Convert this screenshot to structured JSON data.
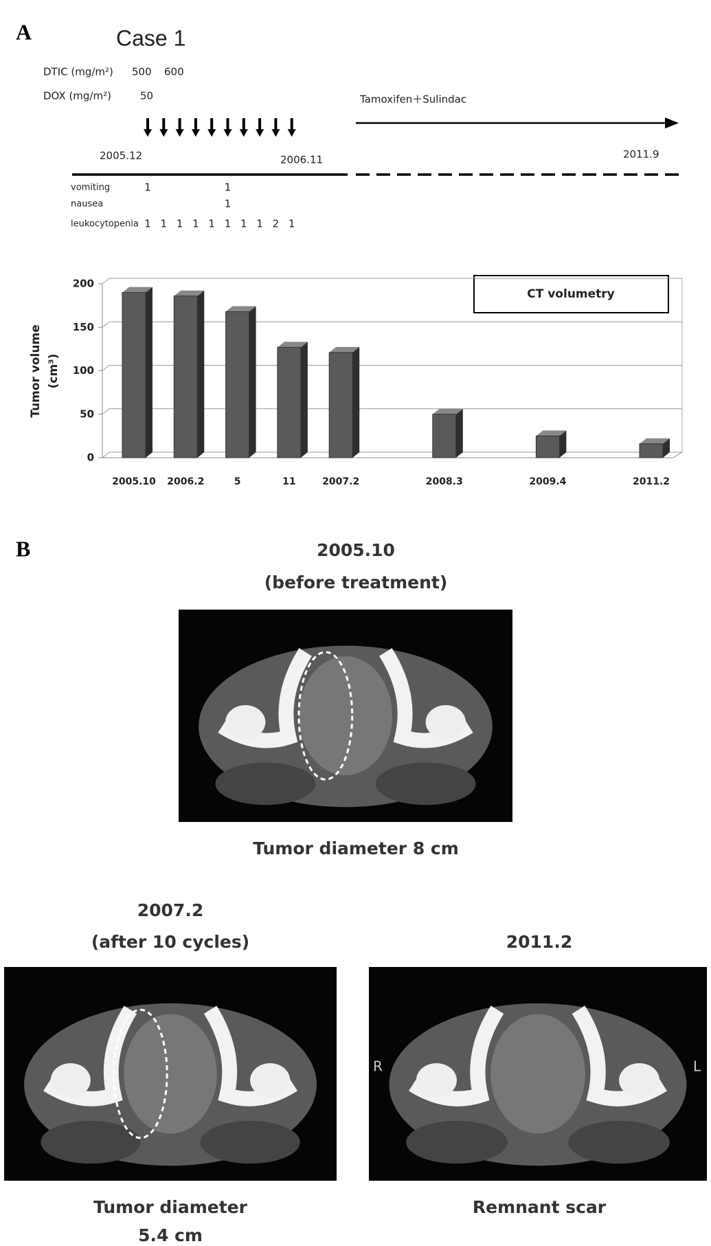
{
  "panel_a": {
    "label": "A",
    "case": "Case 1",
    "dtic_label": "DTIC (mg/m²)",
    "dtic_doses": [
      "500",
      "600"
    ],
    "dox_label": "DOX (mg/m²)",
    "dox_dose": "50",
    "maintenance": "Tamoxifen＋Sulindac",
    "start": "2005.12",
    "chemo_end": "2006.11",
    "end": "2011.9",
    "toxicity": [
      {
        "name": "vomiting",
        "grades": [
          1,
          null,
          null,
          null,
          null,
          1,
          null,
          null,
          null,
          null
        ]
      },
      {
        "name": "nausea",
        "grades": [
          null,
          null,
          null,
          null,
          null,
          1,
          null,
          null,
          null,
          null
        ]
      },
      {
        "name": "leukocytopenia",
        "grades": [
          1,
          1,
          1,
          1,
          1,
          1,
          1,
          1,
          2,
          1
        ]
      }
    ]
  },
  "chart_data": {
    "type": "bar",
    "annotation": "CT volumetry",
    "ylabel": "Tumor volume",
    "ylabel_unit": "(cm³)",
    "categories": [
      "2005.10",
      "2006.2",
      "5",
      "11",
      "2007.2",
      "2008.3",
      "2009.4",
      "2011.2"
    ],
    "values": [
      190,
      186,
      168,
      127,
      121,
      50,
      25,
      16
    ],
    "color": "#5a5a5a",
    "ylim": [
      0,
      200
    ],
    "yticks": [
      0,
      50,
      100,
      150,
      200
    ],
    "grid": true
  },
  "panel_b": {
    "label": "B",
    "images": [
      {
        "date": "2005.10",
        "note": "(before treatment)",
        "caption": [
          "Tumor diameter  8 cm"
        ]
      },
      {
        "date": "2007.2",
        "note": "(after 10 cycles)",
        "caption": [
          "Tumor diameter",
          "5.4 cm"
        ]
      },
      {
        "date": "2011.2",
        "caption": [
          "Remnant scar"
        ],
        "markers": [
          "R",
          "L"
        ]
      }
    ]
  }
}
